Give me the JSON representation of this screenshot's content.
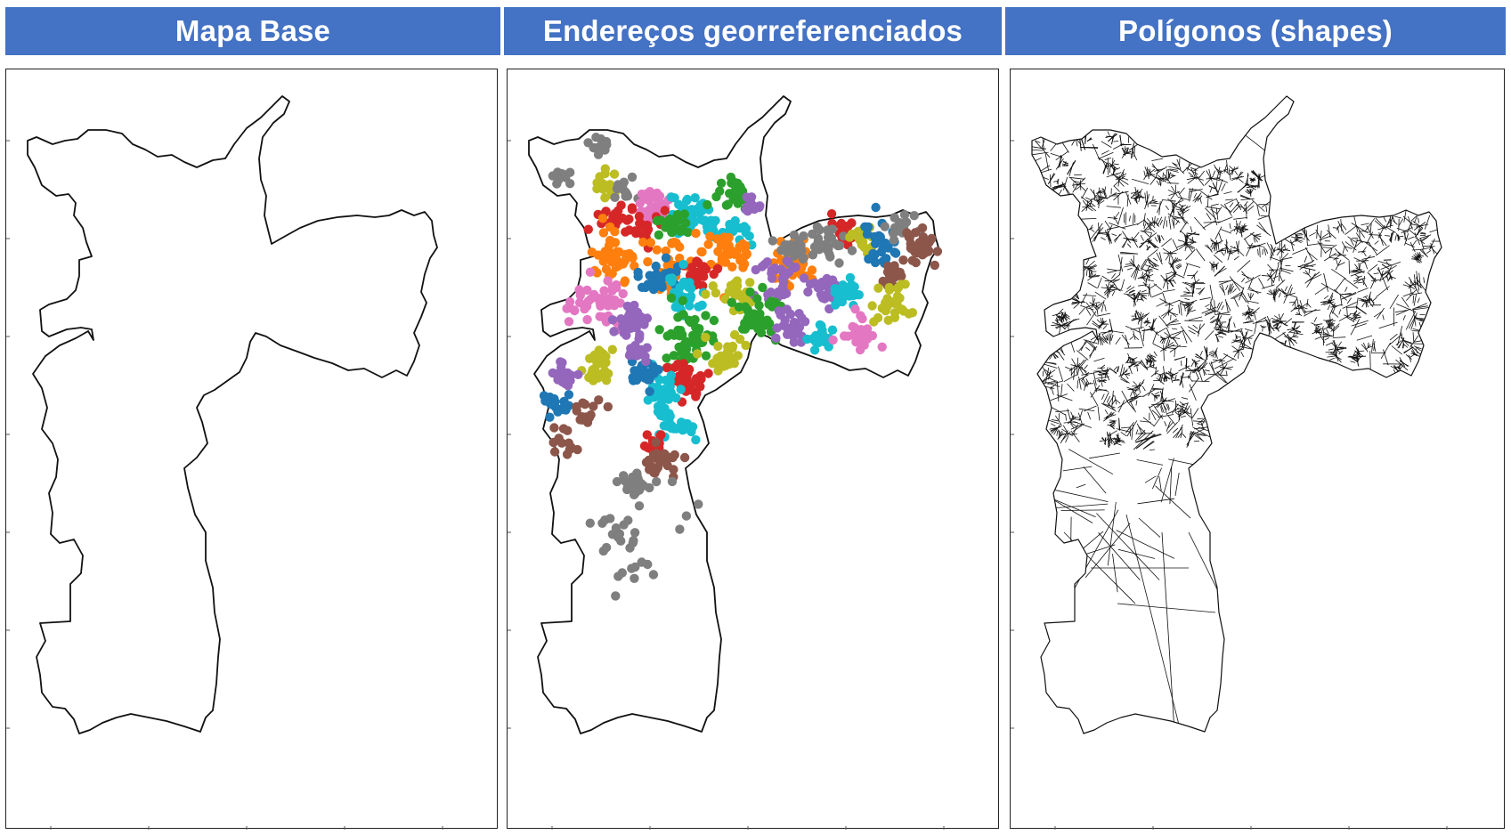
{
  "panels": [
    {
      "title": "Mapa Base",
      "kind": "outline"
    },
    {
      "title": "Endereços georreferenciados",
      "kind": "points"
    },
    {
      "title": "Polígonos (shapes)",
      "kind": "polygons"
    }
  ],
  "colors": {
    "header_bg": "#4472c4",
    "header_text": "#ffffff",
    "cluster_palette": [
      "#1f77b4",
      "#ff7f0e",
      "#2ca02c",
      "#d62728",
      "#9467bd",
      "#8c564b",
      "#e377c2",
      "#7f7f7f",
      "#bcbd22",
      "#17becf"
    ]
  },
  "icons": [
    "sao-paulo-outline-icon"
  ]
}
